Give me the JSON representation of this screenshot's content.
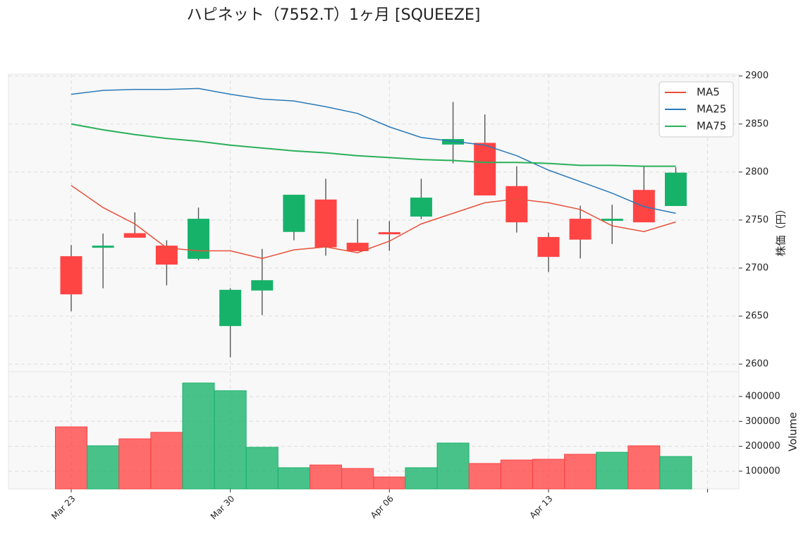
{
  "chart_data": {
    "type": "candlestick",
    "title": "ハピネット（7552.T）1ヶ月 [SQUEEZE]",
    "categories": [
      "Mar 23",
      null,
      null,
      null,
      null,
      "Mar 30",
      null,
      null,
      null,
      null,
      "Apr 06",
      null,
      null,
      null,
      null,
      "Apr 13",
      null,
      null,
      null,
      null
    ],
    "xticks": [
      0,
      5,
      10,
      15,
      20
    ],
    "open": [
      2712,
      2722,
      2736,
      2723,
      2710,
      2640,
      2677,
      2738,
      2771,
      2726,
      2737,
      2754,
      2829,
      2830,
      2785,
      2732,
      2751,
      2750,
      2781,
      2765
    ],
    "high": [
      2724,
      2736,
      2758,
      2729,
      2763,
      2679,
      2720,
      2776,
      2793,
      2751,
      2749,
      2793,
      2873,
      2860,
      2806,
      2737,
      2765,
      2766,
      2806,
      2805
    ],
    "low": [
      2655,
      2679,
      2732,
      2682,
      2708,
      2607,
      2651,
      2729,
      2713,
      2718,
      2718,
      2751,
      2809,
      2776,
      2737,
      2696,
      2710,
      2725,
      2748,
      2765
    ],
    "close": [
      2673,
      2723,
      2732,
      2704,
      2751,
      2677,
      2687,
      2776,
      2722,
      2718,
      2736,
      2773,
      2834,
      2776,
      2748,
      2712,
      2730,
      2751,
      2748,
      2799
    ],
    "up_color": "#17b26a",
    "down_color": "#ff4444",
    "ylabel": "株価（円）",
    "ylim": [
      2592,
      2902
    ],
    "yticks": [
      2600,
      2650,
      2700,
      2750,
      2800,
      2850,
      2900
    ],
    "grid": true,
    "legend": "upper right",
    "lines": [
      {
        "name": "MA5",
        "color": "#e8503a",
        "values": [
          2786,
          2763,
          2746,
          2721,
          2718,
          2718,
          2710,
          2719,
          2722,
          2716,
          2728,
          2746,
          2757,
          2768,
          2772,
          2768,
          2761,
          2744,
          2738,
          2748
        ]
      },
      {
        "name": "MA25",
        "color": "#2a7ab8",
        "values": [
          2881,
          2885,
          2886,
          2886,
          2887,
          2881,
          2876,
          2874,
          2868,
          2861,
          2847,
          2836,
          2832,
          2828,
          2817,
          2802,
          2790,
          2778,
          2764,
          2757
        ]
      },
      {
        "name": "MA75",
        "color": "#2ab05a",
        "values": [
          2850,
          2844,
          2839,
          2835,
          2832,
          2828,
          2825,
          2822,
          2820,
          2817,
          2815,
          2813,
          2812,
          2810,
          2810,
          2809,
          2807,
          2807,
          2806,
          2806
        ]
      }
    ],
    "volume": {
      "ylabel": "Volume",
      "ylim": [
        29000,
        499000
      ],
      "yticks": [
        100000,
        200000,
        300000,
        400000
      ],
      "values": [
        278000,
        202000,
        230000,
        256000,
        454000,
        423000,
        196000,
        114000,
        125000,
        111000,
        77000,
        114000,
        213000,
        131000,
        145000,
        148000,
        168000,
        176000,
        202000,
        159000
      ]
    }
  }
}
